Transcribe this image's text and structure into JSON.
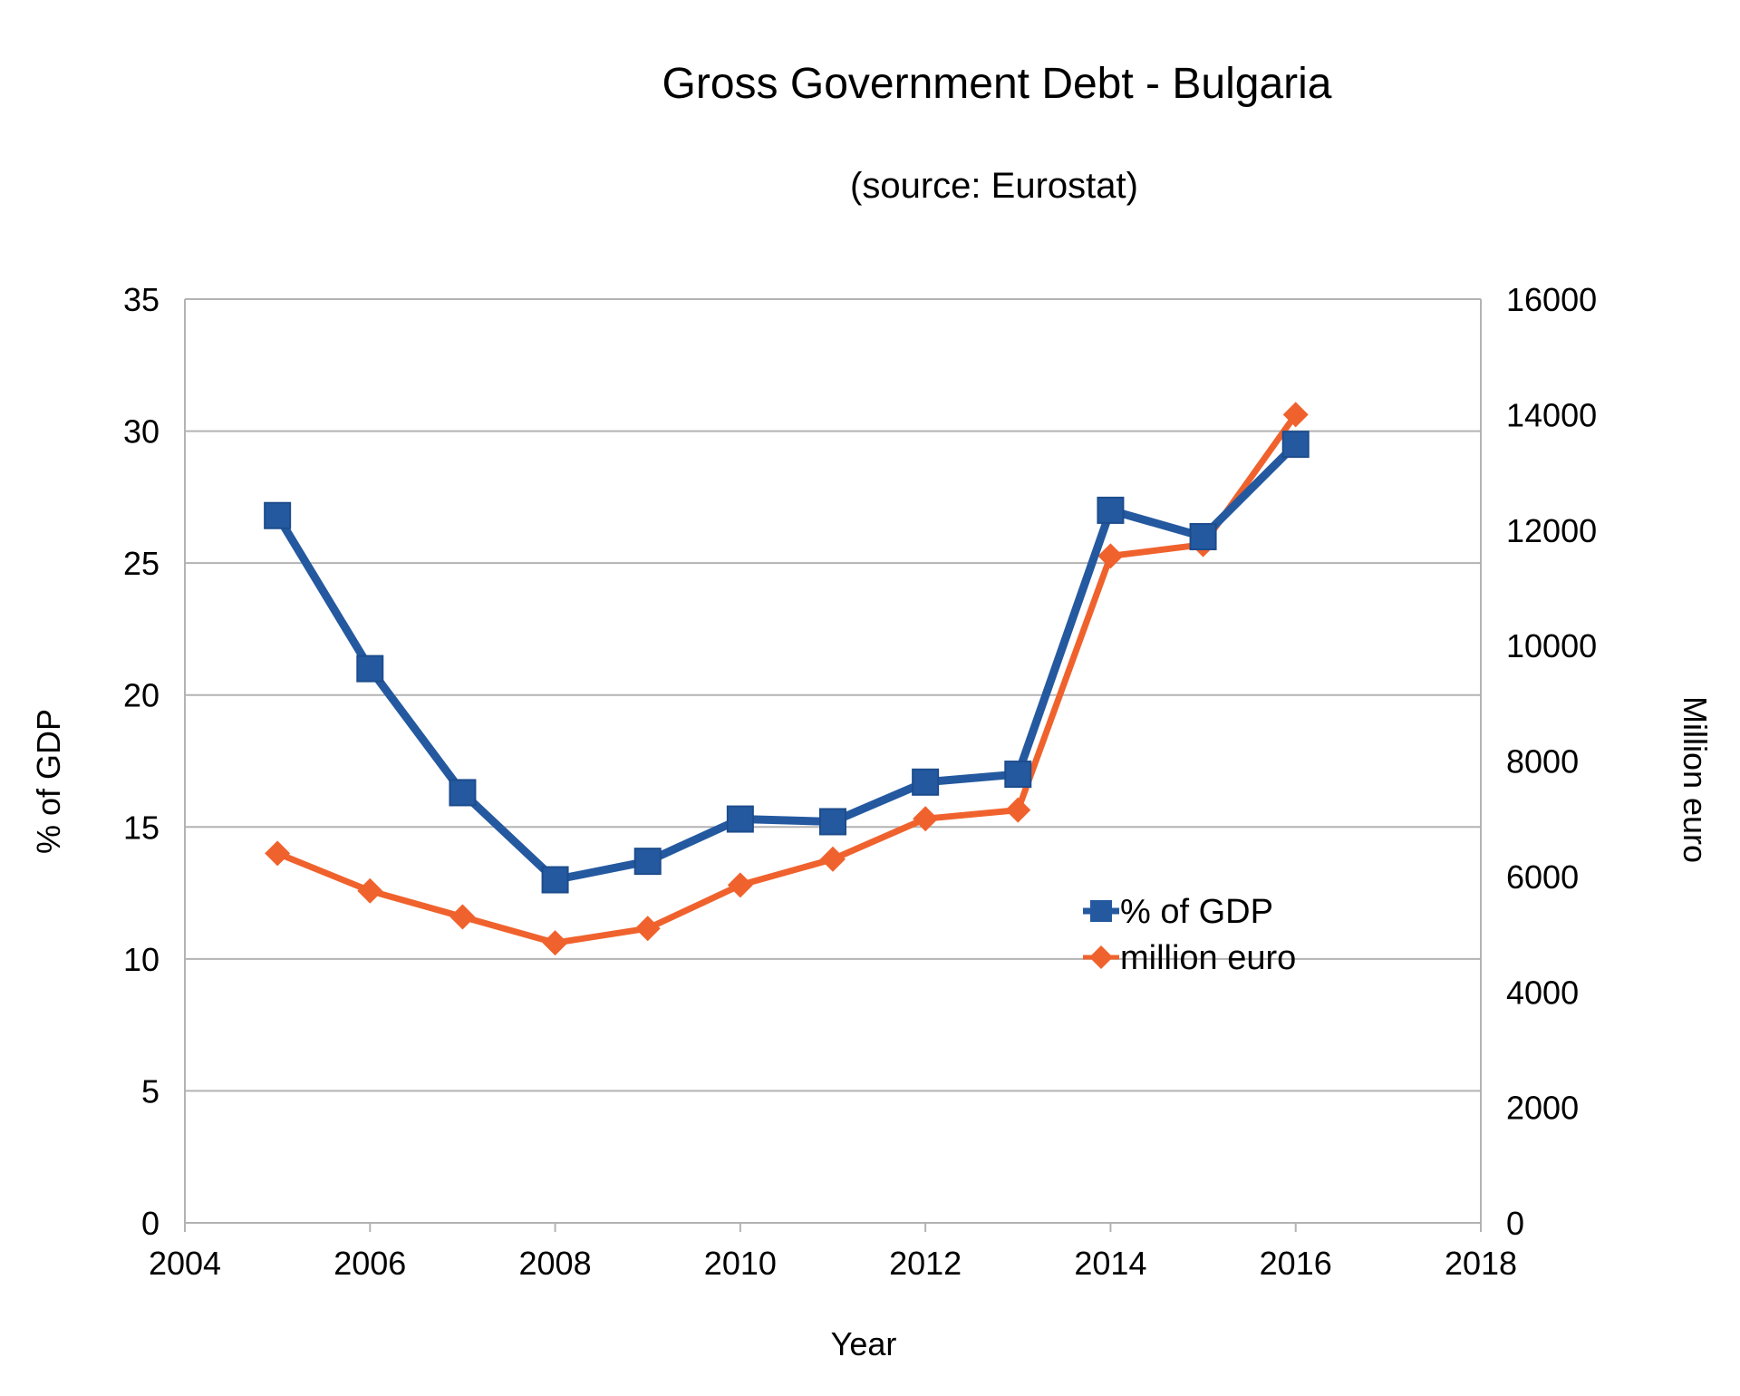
{
  "chart_data": {
    "type": "line",
    "title": "Gross Government Debt - Bulgaria",
    "subtitle": "(source:  Eurostat)",
    "xlabel": "Year",
    "ylabel_left": "% of GDP",
    "ylabel_right": "Million euro",
    "xlim": [
      2004,
      2018
    ],
    "ylim_left": [
      0,
      35
    ],
    "ylim_right": [
      0,
      16000
    ],
    "x_ticks": [
      "2004",
      "2006",
      "2008",
      "2010",
      "2012",
      "2014",
      "2016",
      "2018"
    ],
    "y_left_ticks": [
      "0",
      "5",
      "10",
      "15",
      "20",
      "25",
      "30",
      "35"
    ],
    "y_right_ticks": [
      "0",
      "2000",
      "4000",
      "6000",
      "8000",
      "10000",
      "12000",
      "14000",
      "16000"
    ],
    "grid": "horizontal",
    "legend_position": "center-right",
    "x": [
      2005,
      2006,
      2007,
      2008,
      2009,
      2010,
      2011,
      2012,
      2013,
      2014,
      2015,
      2016
    ],
    "series": [
      {
        "name": "% of GDP",
        "axis": "left",
        "color": "#2459a0",
        "marker": "square",
        "values": [
          26.8,
          21.0,
          16.3,
          13.0,
          13.7,
          15.3,
          15.2,
          16.7,
          17.0,
          27.0,
          26.0,
          29.5
        ]
      },
      {
        "name": "million euro",
        "axis": "right",
        "color": "#f0622d",
        "marker": "diamond",
        "values": [
          6400,
          5750,
          5300,
          4850,
          5100,
          5850,
          6300,
          7000,
          7150,
          11550,
          11750,
          14000
        ]
      }
    ]
  }
}
